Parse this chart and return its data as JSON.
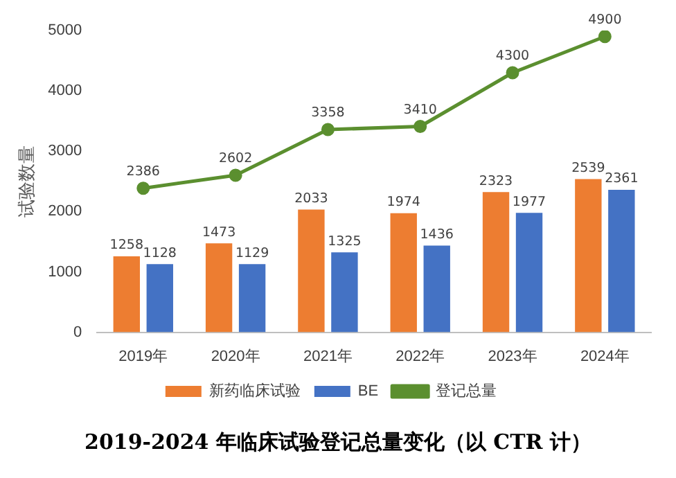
{
  "chart_data": {
    "type": "bar",
    "title": "2019-2024 年临床试验登记总量变化（以 CTR 计）",
    "ylabel": "试验数量",
    "categories": [
      "2019年",
      "2020年",
      "2021年",
      "2022年",
      "2023年",
      "2024年"
    ],
    "series": [
      {
        "name": "新药临床试验",
        "color": "#ed7d31",
        "values": [
          1258,
          1473,
          2033,
          1974,
          2323,
          2539
        ]
      },
      {
        "name": "BE",
        "color": "#4472c4",
        "values": [
          1128,
          1129,
          1325,
          1436,
          1977,
          2361
        ]
      },
      {
        "name": "登记总量",
        "color": "#5b8f2f",
        "type": "line",
        "values": [
          2386,
          2602,
          3358,
          3410,
          4300,
          4900
        ]
      }
    ],
    "ylim": [
      0,
      5000
    ],
    "yticks": [
      0,
      1000,
      2000,
      3000,
      4000,
      5000
    ],
    "grid": false,
    "legend": "bottom",
    "data_labels": true,
    "marker": "circle",
    "line_style": "solid"
  }
}
